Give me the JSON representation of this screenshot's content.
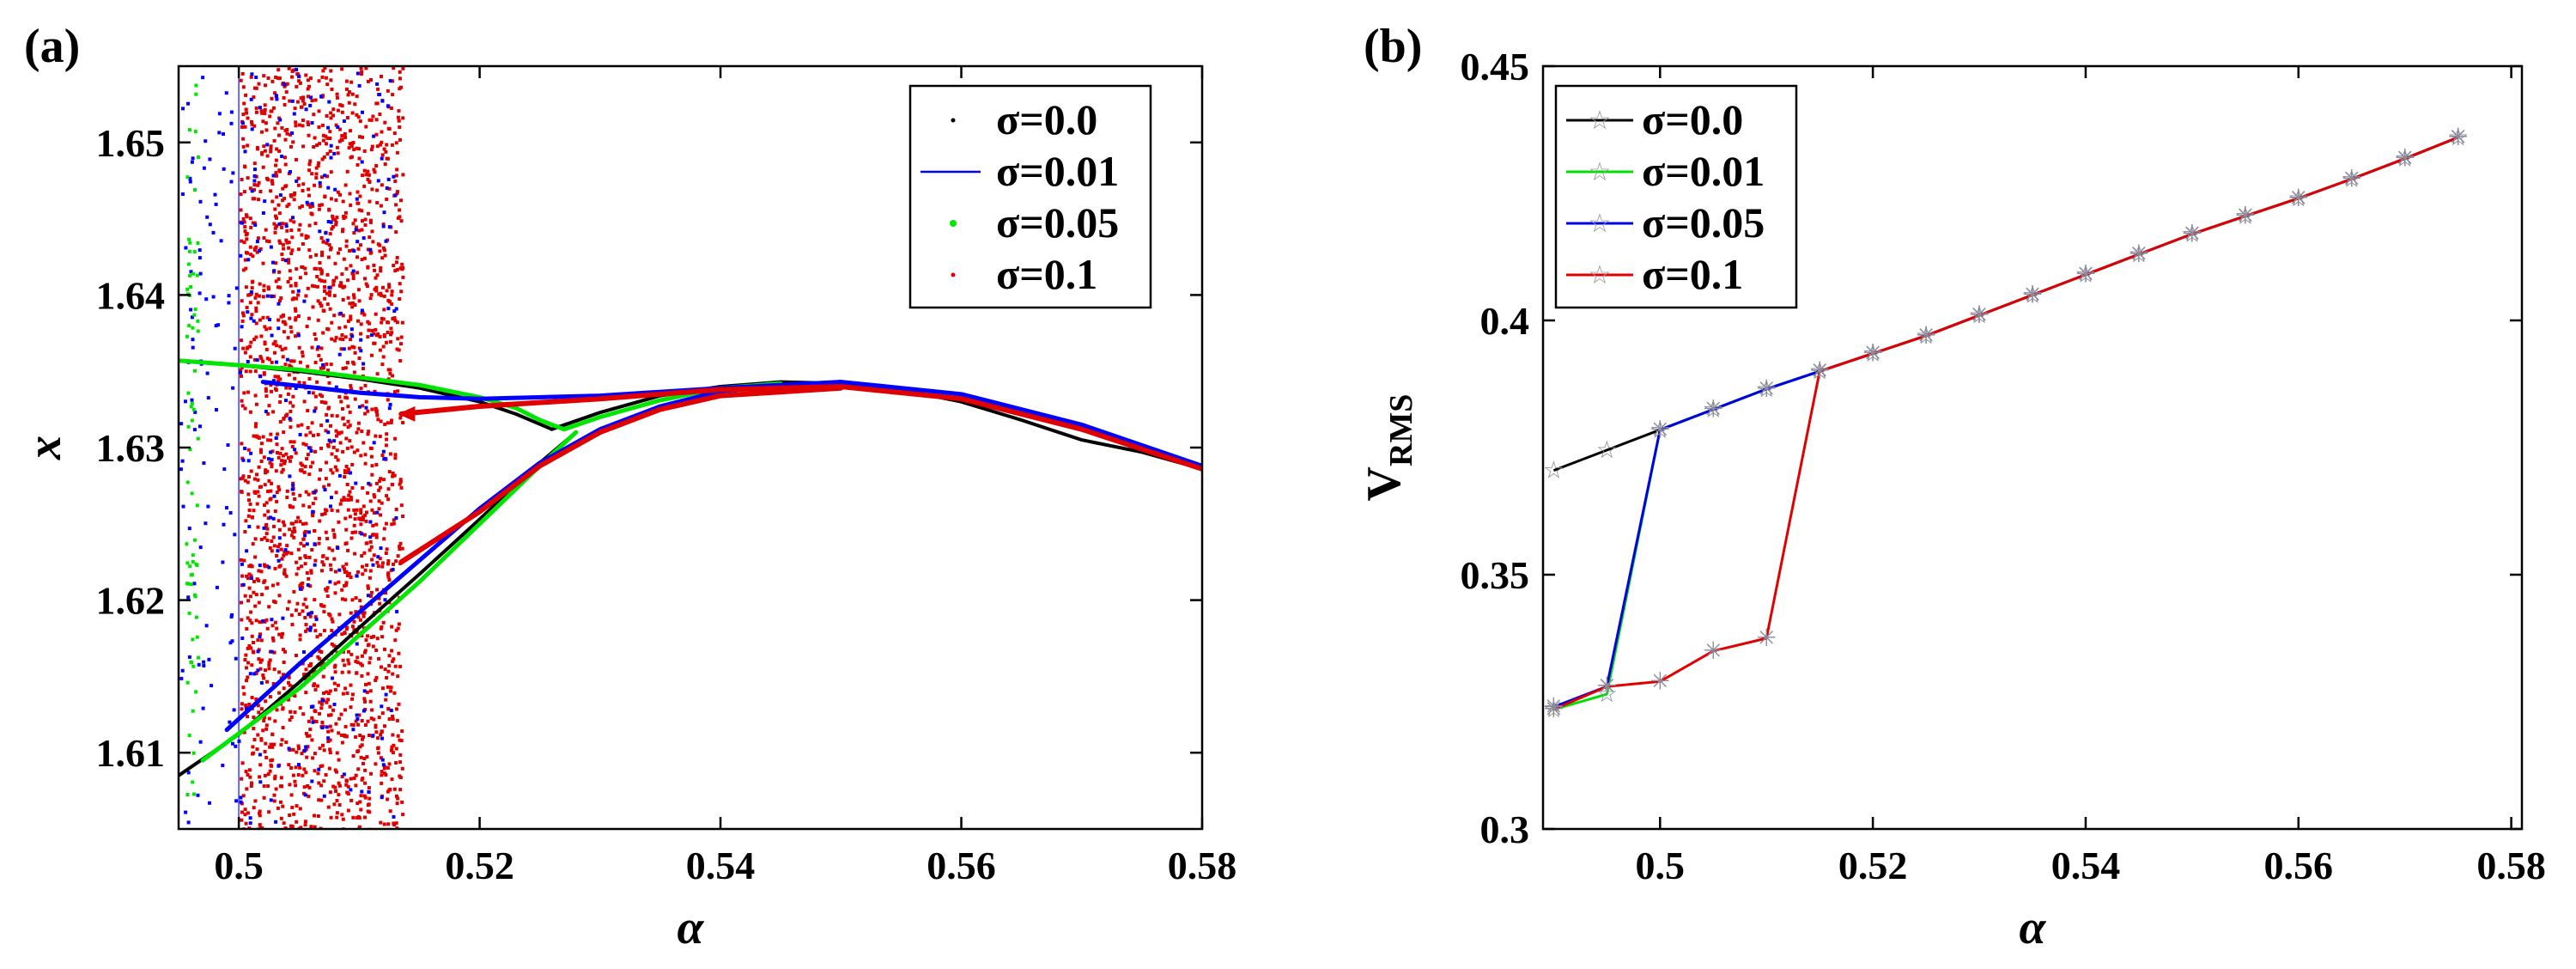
{
  "chart_data": [
    {
      "type": "scatter",
      "panel_label": "(a)",
      "xlabel": "α",
      "ylabel": "x",
      "xlim": [
        0.495,
        0.58
      ],
      "ylim": [
        1.605,
        1.655
      ],
      "xticks": [
        "0.5",
        "0.52",
        "0.54",
        "0.56",
        "0.58"
      ],
      "xtick_values": [
        0.5,
        0.52,
        0.54,
        0.56,
        0.58
      ],
      "yticks": [
        "1.61",
        "1.62",
        "1.63",
        "1.64",
        "1.65"
      ],
      "ytick_values": [
        1.61,
        1.62,
        1.63,
        1.64,
        1.65
      ],
      "legend": [
        "σ=0.0",
        "σ=0.01",
        "σ=0.05",
        "σ=0.1"
      ],
      "legend_position": "top-right",
      "series": [
        {
          "name": "σ=0.0",
          "color": "#000000",
          "upper": [
            [
              0.495,
              1.6357
            ],
            [
              0.5,
              1.6354
            ],
            [
              0.505,
              1.635
            ],
            [
              0.51,
              1.6345
            ],
            [
              0.515,
              1.6339
            ],
            [
              0.52,
              1.633
            ],
            [
              0.523,
              1.6322
            ],
            [
              0.526,
              1.6312
            ]
          ],
          "lower": [
            [
              0.495,
              1.6085
            ],
            [
              0.5,
              1.6112
            ],
            [
              0.505,
              1.6146
            ],
            [
              0.51,
              1.6182
            ],
            [
              0.515,
              1.6217
            ],
            [
              0.52,
              1.6253
            ],
            [
              0.525,
              1.629
            ],
            [
              0.528,
              1.631
            ]
          ],
          "stable": [
            [
              0.526,
              1.6312
            ],
            [
              0.53,
              1.6323
            ],
            [
              0.535,
              1.6334
            ],
            [
              0.54,
              1.634
            ],
            [
              0.545,
              1.6343
            ],
            [
              0.55,
              1.6342
            ],
            [
              0.555,
              1.6338
            ],
            [
              0.56,
              1.633
            ],
            [
              0.565,
              1.6318
            ],
            [
              0.57,
              1.6305
            ],
            [
              0.575,
              1.6297
            ],
            [
              0.58,
              1.6286
            ]
          ]
        },
        {
          "name": "σ=0.01",
          "color": "#0000ff",
          "upper": [
            [
              0.502,
              1.6343
            ],
            [
              0.51,
              1.6336
            ],
            [
              0.515,
              1.6333
            ],
            [
              0.52,
              1.6332
            ],
            [
              0.53,
              1.6334
            ],
            [
              0.54,
              1.6339
            ],
            [
              0.55,
              1.6343
            ],
            [
              0.56,
              1.6335
            ],
            [
              0.57,
              1.6315
            ],
            [
              0.58,
              1.6288
            ]
          ],
          "lower": [
            [
              0.499,
              1.6115
            ],
            [
              0.505,
              1.6158
            ],
            [
              0.51,
              1.6192
            ],
            [
              0.515,
              1.6226
            ],
            [
              0.52,
              1.626
            ],
            [
              0.525,
              1.629
            ],
            [
              0.53,
              1.6312
            ],
            [
              0.535,
              1.6327
            ],
            [
              0.54,
              1.6337
            ],
            [
              0.55,
              1.6343
            ]
          ]
        },
        {
          "name": "σ=0.05",
          "color": "#00e600",
          "upper": [
            [
              0.495,
              1.6357
            ],
            [
              0.505,
              1.6351
            ],
            [
              0.515,
              1.6341
            ],
            [
              0.52,
              1.6333
            ],
            [
              0.523,
              1.6326
            ],
            [
              0.525,
              1.6318
            ],
            [
              0.527,
              1.6312
            ]
          ],
          "lower": [
            [
              0.497,
              1.6095
            ],
            [
              0.505,
              1.6142
            ],
            [
              0.51,
              1.6177
            ],
            [
              0.515,
              1.6212
            ],
            [
              0.52,
              1.625
            ],
            [
              0.525,
              1.6288
            ],
            [
              0.528,
              1.631
            ]
          ],
          "branch": [
            [
              0.527,
              1.6312
            ],
            [
              0.53,
              1.632
            ],
            [
              0.535,
              1.6331
            ],
            [
              0.54,
              1.6339
            ],
            [
              0.545,
              1.6342
            ]
          ]
        },
        {
          "name": "σ=0.1",
          "color": "#e00000",
          "upper": [
            [
              0.5135,
              1.6322
            ],
            [
              0.52,
              1.6327
            ],
            [
              0.53,
              1.6332
            ],
            [
              0.54,
              1.6338
            ],
            [
              0.55,
              1.634
            ],
            [
              0.56,
              1.6332
            ],
            [
              0.57,
              1.6312
            ],
            [
              0.58,
              1.6286
            ]
          ],
          "lower": [
            [
              0.5135,
              1.6225
            ],
            [
              0.52,
              1.6258
            ],
            [
              0.525,
              1.6288
            ],
            [
              0.53,
              1.631
            ],
            [
              0.535,
              1.6325
            ],
            [
              0.54,
              1.6334
            ],
            [
              0.55,
              1.6339
            ]
          ]
        }
      ],
      "noise_bands": [
        {
          "series": "σ=0.1",
          "color": "#e00000",
          "x_range": [
            0.5,
            0.5135
          ],
          "count": 2200
        },
        {
          "series": "σ=0.01",
          "color": "#0000ff",
          "x_range": [
            0.495,
            0.513
          ],
          "count": 380
        },
        {
          "series": "σ=0.05",
          "color": "#00e600",
          "x_range": [
            0.4955,
            0.4965
          ],
          "count": 70
        }
      ]
    },
    {
      "type": "line",
      "panel_label": "(b)",
      "xlabel": "α",
      "ylabel": "V",
      "ylabel_sub": "RMS",
      "xlim": [
        0.489,
        0.581
      ],
      "ylim": [
        0.3,
        0.45
      ],
      "xticks": [
        "0.5",
        "0.52",
        "0.54",
        "0.56",
        "0.58"
      ],
      "xtick_values": [
        0.5,
        0.52,
        0.54,
        0.56,
        0.58
      ],
      "yticks": [
        "0.3",
        "0.35",
        "0.4",
        "0.45"
      ],
      "ytick_values": [
        0.3,
        0.35,
        0.4,
        0.45
      ],
      "legend": [
        "σ=0.0",
        "σ=0.01",
        "σ=0.05",
        "σ=0.1"
      ],
      "legend_position": "top-left",
      "x": [
        0.49,
        0.495,
        0.5,
        0.505,
        0.51,
        0.515,
        0.52,
        0.525,
        0.53,
        0.535,
        0.54,
        0.545,
        0.55,
        0.555,
        0.56,
        0.565,
        0.57,
        0.575
      ],
      "series": [
        {
          "name": "σ=0.0",
          "color": "#000000",
          "marker": "pentagram",
          "values": [
            0.3705,
            0.3745,
            0.3785,
            0.3825,
            0.3865,
            0.39,
            0.3935,
            0.397,
            0.401,
            0.405,
            0.409,
            0.413,
            0.417,
            0.4205,
            0.424,
            0.4278,
            0.4318,
            0.436
          ]
        },
        {
          "name": "σ=0.01",
          "color": "#00e000",
          "marker": "star",
          "values": [
            0.3235,
            0.3265,
            0.3785,
            0.3825,
            0.3865,
            0.39,
            0.3935,
            0.397,
            0.401,
            0.405,
            0.409,
            0.413,
            0.417,
            0.4205,
            0.424,
            0.4278,
            0.4318,
            0.436
          ]
        },
        {
          "name": "σ=0.05",
          "color": "#0000e0",
          "marker": "asterisk",
          "values": [
            0.324,
            0.328,
            0.3785,
            0.3825,
            0.3865,
            0.39,
            0.3935,
            0.397,
            0.401,
            0.405,
            0.409,
            0.413,
            0.417,
            0.4205,
            0.424,
            0.4278,
            0.4318,
            0.436
          ]
        },
        {
          "name": "σ=0.1",
          "color": "#e00000",
          "marker": "asterisk",
          "values": [
            0.3235,
            0.328,
            0.329,
            0.335,
            0.3375,
            0.39,
            0.3935,
            0.397,
            0.401,
            0.405,
            0.409,
            0.413,
            0.417,
            0.4205,
            0.424,
            0.4278,
            0.4318,
            0.436
          ]
        }
      ]
    }
  ]
}
